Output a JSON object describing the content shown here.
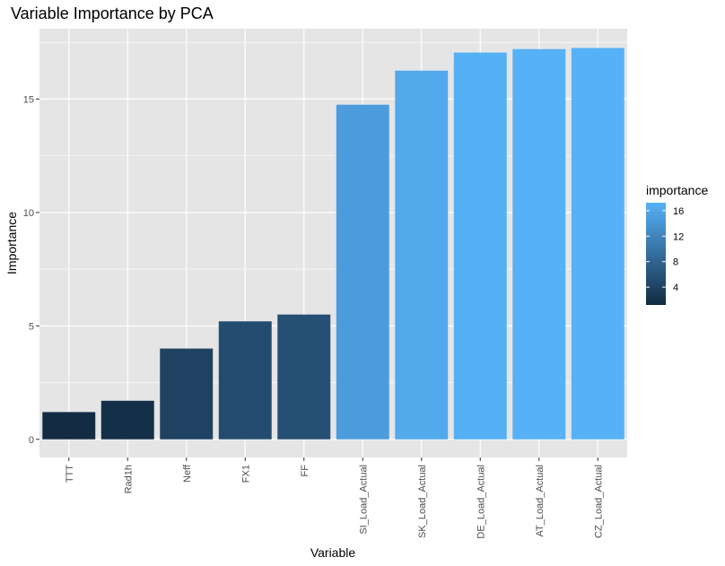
{
  "chart_data": {
    "type": "bar",
    "title": "Variable Importance by PCA",
    "xlabel": "Variable",
    "ylabel": "Importance",
    "categories": [
      "TTT",
      "Rad1h",
      "Neff",
      "FX1",
      "FF",
      "SI_Load_Actual",
      "SK_Load_Actual",
      "DE_Load_Actual",
      "AT_Load_Actual",
      "CZ_Load_Actual"
    ],
    "values": [
      1.2,
      1.7,
      4.0,
      5.2,
      5.5,
      14.75,
      16.25,
      17.05,
      17.2,
      17.25
    ],
    "ylim": [
      -0.8,
      18.1
    ],
    "yticks": [
      0,
      5,
      10,
      15
    ],
    "ytick_labels": [
      "0",
      "5",
      "10",
      "15"
    ],
    "grid": true,
    "background": "#e5e5e5",
    "fill_by": "importance",
    "color_scale": {
      "low": "#132b43",
      "high": "#56b1f7",
      "domain": [
        1.2,
        17.25
      ]
    },
    "legend": {
      "title": "importance",
      "position": "right",
      "ticks": [
        4,
        8,
        12,
        16
      ],
      "tick_labels": [
        "4",
        "8",
        "12",
        "16"
      ]
    }
  }
}
